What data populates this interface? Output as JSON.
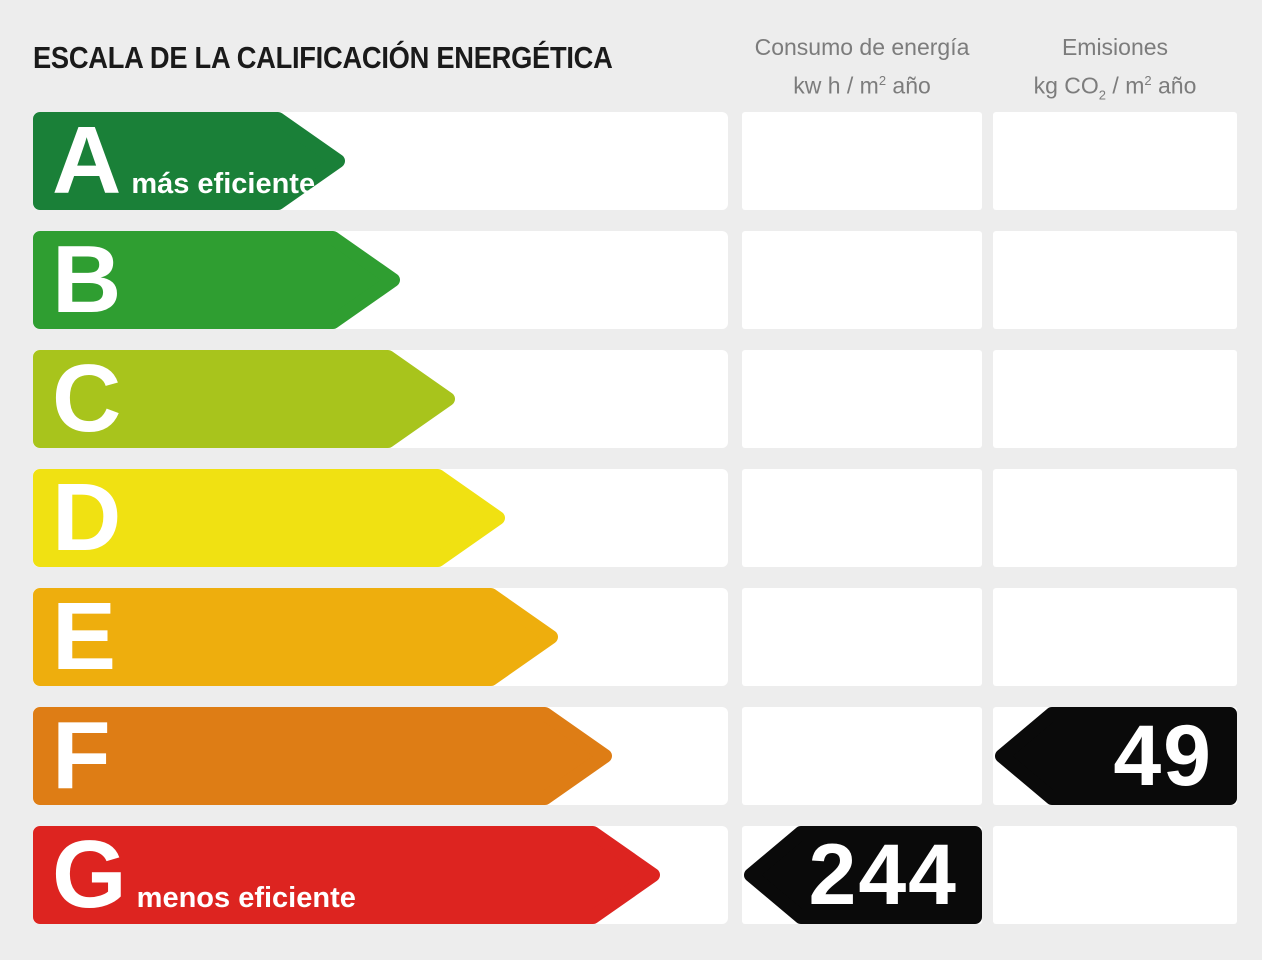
{
  "header": {
    "title": "ESCALA DE LA CALIFICACIÓN ENERGÉTICA",
    "columns": [
      {
        "id": "consumo",
        "line1": "Consumo de energía",
        "line2": [
          {
            "t": "kw h / m"
          },
          {
            "t": "2",
            "v": "sup"
          },
          {
            "t": " año"
          }
        ]
      },
      {
        "id": "emisiones",
        "line1": "Emisiones",
        "line2": [
          {
            "t": "kg CO"
          },
          {
            "t": "2",
            "v": "sub"
          },
          {
            "t": " / m"
          },
          {
            "t": "2",
            "v": "sup"
          },
          {
            "t": " año"
          }
        ]
      }
    ]
  },
  "scale": {
    "rows": [
      {
        "letter": "A",
        "label": "más eficiente",
        "color": "#1a8038",
        "consumo": null,
        "emisiones": null
      },
      {
        "letter": "B",
        "label": null,
        "color": "#2f9e31",
        "consumo": null,
        "emisiones": null
      },
      {
        "letter": "C",
        "label": null,
        "color": "#a8c41c",
        "consumo": null,
        "emisiones": null
      },
      {
        "letter": "D",
        "label": null,
        "color": "#f0e112",
        "consumo": null,
        "emisiones": null
      },
      {
        "letter": "E",
        "label": null,
        "color": "#eeae0d",
        "consumo": null,
        "emisiones": null
      },
      {
        "letter": "F",
        "label": null,
        "color": "#de7d15",
        "consumo": null,
        "emisiones": "49"
      },
      {
        "letter": "G",
        "label": "menos eficiente",
        "color": "#dd2420",
        "consumo": "244",
        "emisiones": null
      }
    ],
    "value_arrow_color": "#0a0a0a",
    "value_text_color": "#ffffff"
  },
  "colors": {
    "background": "#ededed",
    "track": "#ffffff",
    "cell": "#ffffff",
    "title_text": "#1a1a1a",
    "header_text": "#7c7c7c"
  },
  "chart_data": {
    "type": "bar",
    "orientation": "horizontal",
    "title": "ESCALA DE LA CALIFICACIÓN ENERGÉTICA",
    "categories": [
      "A",
      "B",
      "C",
      "D",
      "E",
      "F",
      "G"
    ],
    "series": [
      {
        "name": "Consumo de energía kw h / m2 año",
        "values": [
          null,
          null,
          null,
          null,
          null,
          null,
          244
        ]
      },
      {
        "name": "Emisiones kg CO2 / m2 año",
        "values": [
          null,
          null,
          null,
          null,
          null,
          49,
          null
        ]
      }
    ],
    "annotations": [
      {
        "category": "A",
        "text": "más eficiente"
      },
      {
        "category": "G",
        "text": "menos eficiente"
      }
    ],
    "bar_colors": [
      "#1a8038",
      "#2f9e31",
      "#a8c41c",
      "#f0e112",
      "#eeae0d",
      "#de7d15",
      "#dd2420"
    ],
    "value_marker_color": "#0a0a0a",
    "grid": false,
    "legend_position": "top"
  }
}
